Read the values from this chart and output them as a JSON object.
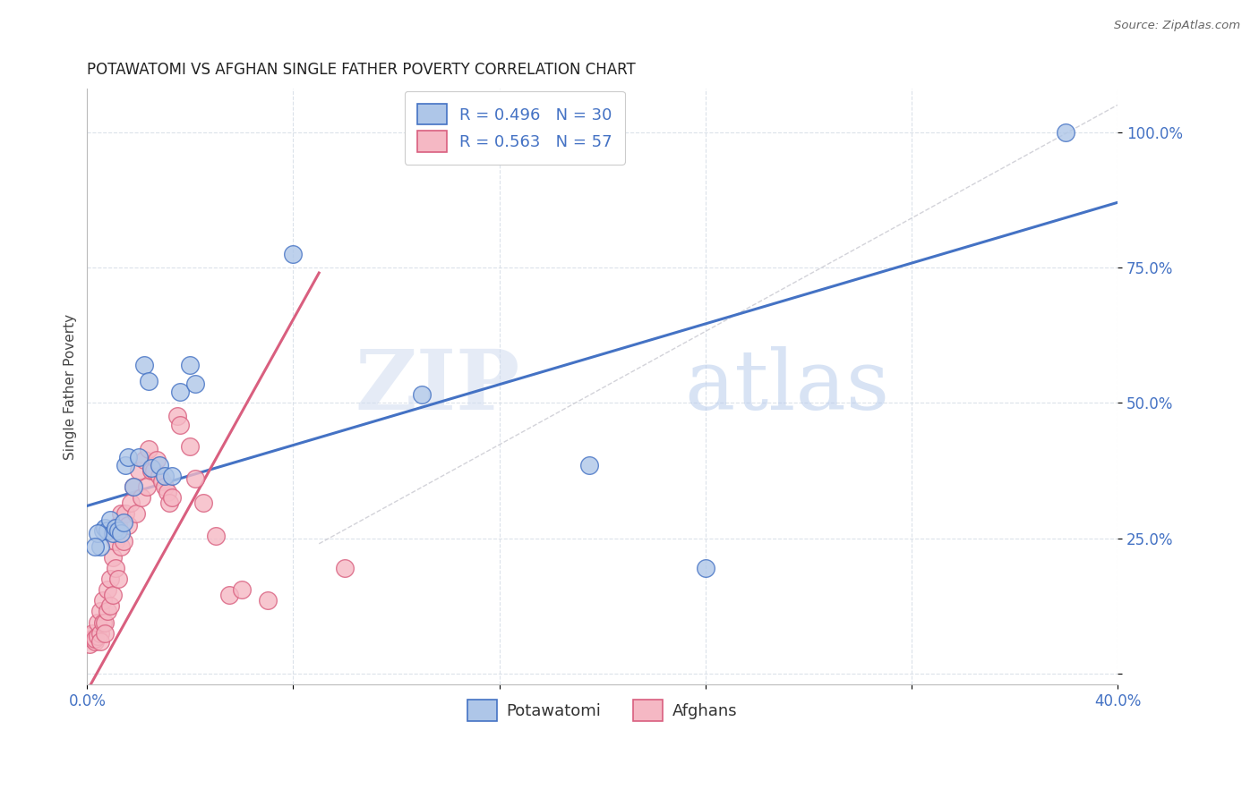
{
  "title": "POTAWATOMI VS AFGHAN SINGLE FATHER POVERTY CORRELATION CHART",
  "source": "Source: ZipAtlas.com",
  "ylabel": "Single Father Poverty",
  "ytick_labels": [
    "100.0%",
    "75.0%",
    "50.0%",
    "25.0%",
    ""
  ],
  "ytick_values": [
    1.0,
    0.75,
    0.5,
    0.25,
    0.0
  ],
  "xlim": [
    0.0,
    0.4
  ],
  "ylim": [
    -0.02,
    1.08
  ],
  "blue_R": 0.496,
  "blue_N": 30,
  "pink_R": 0.563,
  "pink_N": 57,
  "blue_color": "#aec6e8",
  "pink_color": "#f5b8c4",
  "blue_line_color": "#4472c4",
  "pink_line_color": "#d95f7f",
  "legend_label_blue": "Potawatomi",
  "legend_label_pink": "Afghans",
  "watermark_zip": "ZIP",
  "watermark_atlas": "atlas",
  "blue_scatter_x": [
    0.005,
    0.006,
    0.007,
    0.008,
    0.009,
    0.01,
    0.011,
    0.012,
    0.013,
    0.014,
    0.015,
    0.016,
    0.018,
    0.02,
    0.022,
    0.024,
    0.025,
    0.028,
    0.03,
    0.033,
    0.036,
    0.04,
    0.042,
    0.08,
    0.13,
    0.195,
    0.24,
    0.38,
    0.004,
    0.003
  ],
  "blue_scatter_y": [
    0.235,
    0.265,
    0.27,
    0.265,
    0.285,
    0.26,
    0.27,
    0.265,
    0.26,
    0.28,
    0.385,
    0.4,
    0.345,
    0.4,
    0.57,
    0.54,
    0.38,
    0.385,
    0.365,
    0.365,
    0.52,
    0.57,
    0.535,
    0.775,
    0.515,
    0.385,
    0.195,
    1.0,
    0.26,
    0.235
  ],
  "pink_scatter_x": [
    0.001,
    0.001,
    0.002,
    0.002,
    0.003,
    0.003,
    0.004,
    0.004,
    0.005,
    0.005,
    0.005,
    0.006,
    0.006,
    0.007,
    0.007,
    0.008,
    0.008,
    0.009,
    0.009,
    0.01,
    0.01,
    0.011,
    0.011,
    0.012,
    0.012,
    0.013,
    0.013,
    0.014,
    0.015,
    0.016,
    0.017,
    0.018,
    0.019,
    0.02,
    0.021,
    0.022,
    0.023,
    0.024,
    0.025,
    0.026,
    0.027,
    0.028,
    0.029,
    0.03,
    0.031,
    0.032,
    0.033,
    0.035,
    0.036,
    0.04,
    0.042,
    0.045,
    0.05,
    0.055,
    0.06,
    0.07,
    0.1
  ],
  "pink_scatter_y": [
    0.055,
    0.07,
    0.065,
    0.075,
    0.06,
    0.065,
    0.07,
    0.095,
    0.075,
    0.06,
    0.115,
    0.095,
    0.135,
    0.095,
    0.075,
    0.115,
    0.155,
    0.125,
    0.175,
    0.145,
    0.215,
    0.195,
    0.245,
    0.175,
    0.275,
    0.235,
    0.295,
    0.245,
    0.295,
    0.275,
    0.315,
    0.345,
    0.295,
    0.375,
    0.325,
    0.395,
    0.345,
    0.415,
    0.375,
    0.375,
    0.395,
    0.365,
    0.355,
    0.345,
    0.335,
    0.315,
    0.325,
    0.475,
    0.46,
    0.42,
    0.36,
    0.315,
    0.255,
    0.145,
    0.155,
    0.135,
    0.195
  ],
  "blue_line_x": [
    0.0,
    0.4
  ],
  "blue_line_y": [
    0.31,
    0.87
  ],
  "pink_line_x": [
    -0.001,
    0.09
  ],
  "pink_line_y": [
    -0.04,
    0.74
  ],
  "diag_line_x": [
    0.09,
    0.4
  ],
  "diag_line_y": [
    0.24,
    1.05
  ],
  "xtick_positions": [
    0.0,
    0.08,
    0.16,
    0.24,
    0.32,
    0.4
  ],
  "grid_color": "#d8dfe8",
  "background_color": "#ffffff",
  "title_fontsize": 12,
  "tick_fontsize": 12,
  "ylabel_fontsize": 11
}
